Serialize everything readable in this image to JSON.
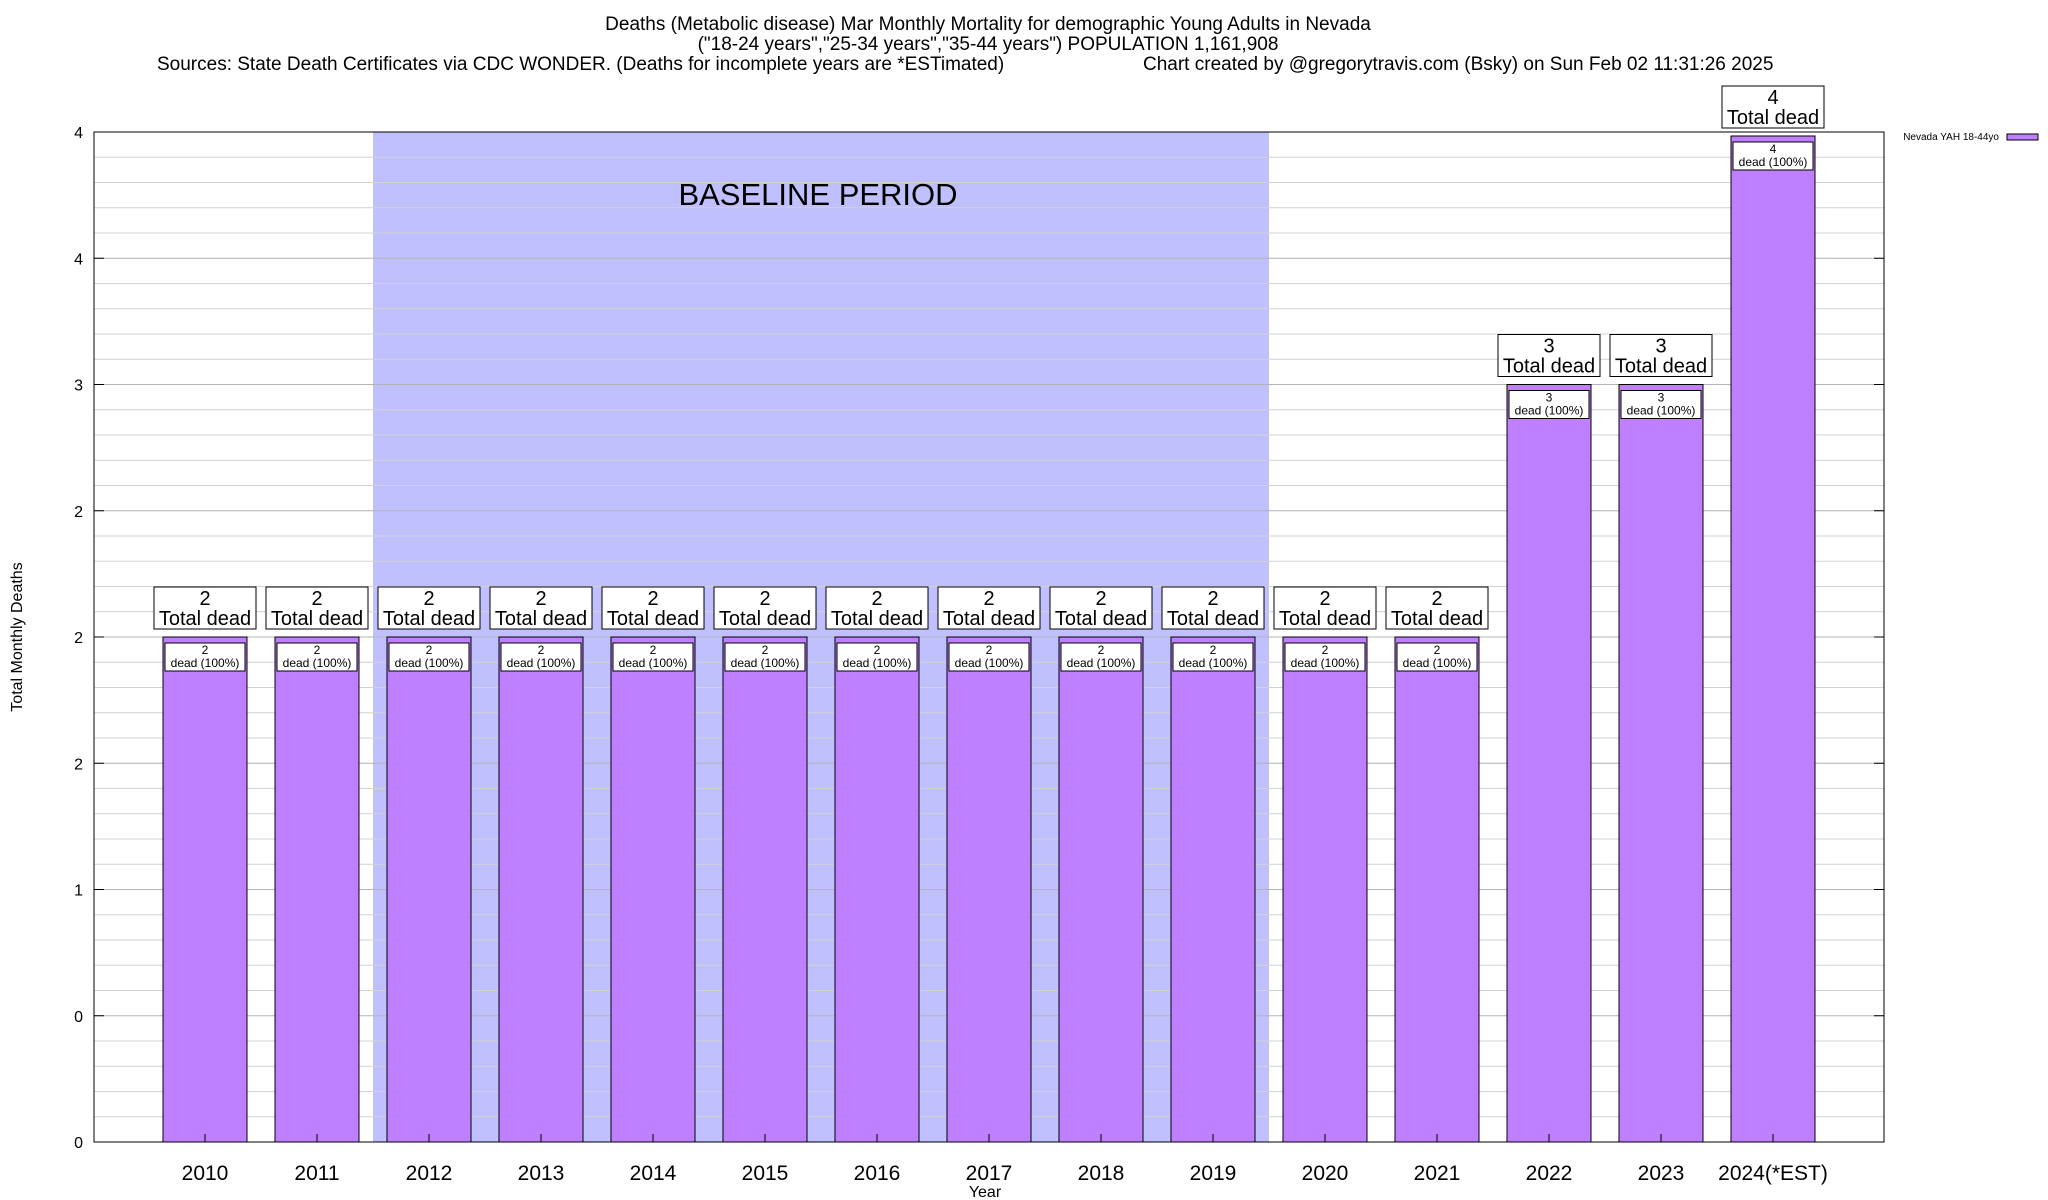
{
  "chart_data": {
    "type": "bar",
    "title": "Deaths (Metabolic disease) Mar Monthly Mortality for demographic Young Adults in Nevada",
    "subtitle": "(\"18-24 years\",\"25-34 years\",\"35-44 years\") POPULATION 1,161,908",
    "sources": "Sources: State Death Certificates via CDC WONDER. (Deaths for incomplete years are *ESTimated)",
    "credit": "Chart created by @gregorytravis.com (Bsky) on Sun Feb 02 11:31:26 2025",
    "xlabel": "Year",
    "ylabel": "Total Monthly Deaths",
    "categories": [
      "2010",
      "2011",
      "2012",
      "2013",
      "2014",
      "2015",
      "2016",
      "2017",
      "2018",
      "2019",
      "2020",
      "2021",
      "2022",
      "2023",
      "2024(*EST)"
    ],
    "series": [
      {
        "name": "Nevada YAH 18-44yo",
        "color": "#bf80ff",
        "values": [
          2,
          2,
          2,
          2,
          2,
          2,
          2,
          2,
          2,
          2,
          2,
          2,
          3,
          3,
          4
        ]
      }
    ],
    "ylim": [
      0,
      4
    ],
    "ytick_values": [
      0,
      0.5,
      1,
      1.5,
      2,
      2.5,
      3,
      3.5,
      4
    ],
    "ytick_labels": [
      "0",
      "0",
      "1",
      "2",
      "2",
      "2",
      "3",
      "4",
      "4"
    ],
    "bar_labels": {
      "total_values": [
        "2",
        "2",
        "2",
        "2",
        "2",
        "2",
        "2",
        "2",
        "2",
        "2",
        "2",
        "2",
        "3",
        "3",
        "4"
      ],
      "total_caption": "Total dead",
      "inner_values": [
        "2",
        "2",
        "2",
        "2",
        "2",
        "2",
        "2",
        "2",
        "2",
        "2",
        "2",
        "2",
        "3",
        "3",
        "4"
      ],
      "inner_caption": "dead (100%)"
    },
    "baseline": {
      "label": "BASELINE PERIOD",
      "start": "2012",
      "end": "2019",
      "color": "#c0c0ff"
    },
    "legend": {
      "position": "top-right",
      "label": "Nevada YAH 18-44yo"
    },
    "grid": true
  }
}
